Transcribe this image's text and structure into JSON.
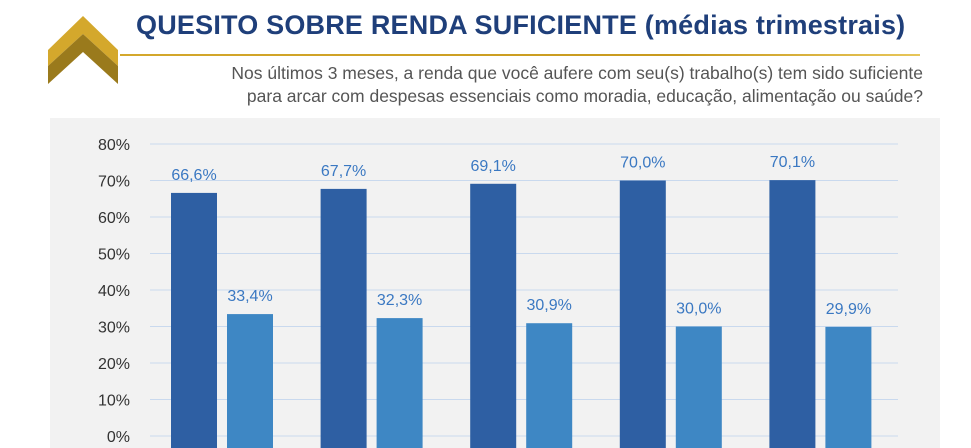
{
  "header": {
    "title": "QUESITO SOBRE RENDA SUFICIENTE (médias trimestrais)",
    "subtitle_line1": "Nos últimos 3 meses, a renda que você aufere com seu(s) trabalho(s) tem sido suficiente",
    "subtitle_line2": "para arcar com despesas essenciais como moradia, educação, alimentação ou saúde?"
  },
  "colors": {
    "title": "#1f3f7a",
    "gold_light": "#d4a82c",
    "gold_dark": "#9a7a1c",
    "series1": "#2e5fa3",
    "series2": "#3e87c4",
    "data_label": "#3a78c2",
    "plot_background": "#f2f2f2",
    "gridline": "#c9d9ee"
  },
  "chart_data": {
    "type": "bar",
    "categories": [
      "",
      "",
      "",
      "",
      ""
    ],
    "series": [
      {
        "values": [
          66.6,
          67.7,
          69.1,
          70.0,
          70.1
        ],
        "labels": [
          "66,6%",
          "67,7%",
          "69,1%",
          "70,0%",
          "70,1%"
        ]
      },
      {
        "values": [
          33.4,
          32.3,
          30.9,
          30.0,
          29.9
        ],
        "labels": [
          "33,4%",
          "32,3%",
          "30,9%",
          "30,0%",
          "29,9%"
        ]
      }
    ],
    "ylim": [
      0,
      80
    ],
    "yticks": [
      0,
      10,
      20,
      30,
      40,
      50,
      60,
      70,
      80
    ],
    "ytick_labels": [
      "0%",
      "10%",
      "20%",
      "30%",
      "40%",
      "50%",
      "60%",
      "70%",
      "80%"
    ],
    "grid": true,
    "legend": "none"
  }
}
